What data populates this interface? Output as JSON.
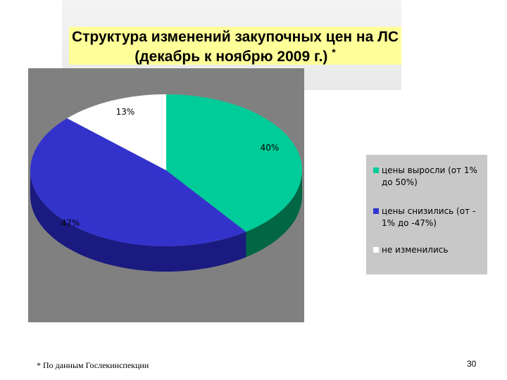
{
  "title": {
    "line1": "Структура изменений закупочных цен на ЛС",
    "line2": "(декабрь к ноябрю 2009 г.)",
    "marker": "*"
  },
  "chart_data": {
    "type": "pie",
    "three_d": true,
    "categories": [
      "цены выросли (от 1% до 50%)",
      "цены снизились (от - 1% до -47%)",
      "не изменились"
    ],
    "values": [
      40,
      47,
      13
    ],
    "data_labels": [
      "40%",
      "47%",
      "13%"
    ],
    "colors": [
      "#00cc99",
      "#3333cc",
      "#ffffff"
    ],
    "side_colors": [
      "#006644",
      "#1a1a80",
      "#999999"
    ],
    "legend": [
      "цены выросли (от 1% до 50%)",
      "цены снизились (от - 1% до -47%)",
      "не изменились"
    ],
    "legend_position": "right"
  },
  "footnote": "* По данным Гослекинспекции",
  "page_number": "30"
}
